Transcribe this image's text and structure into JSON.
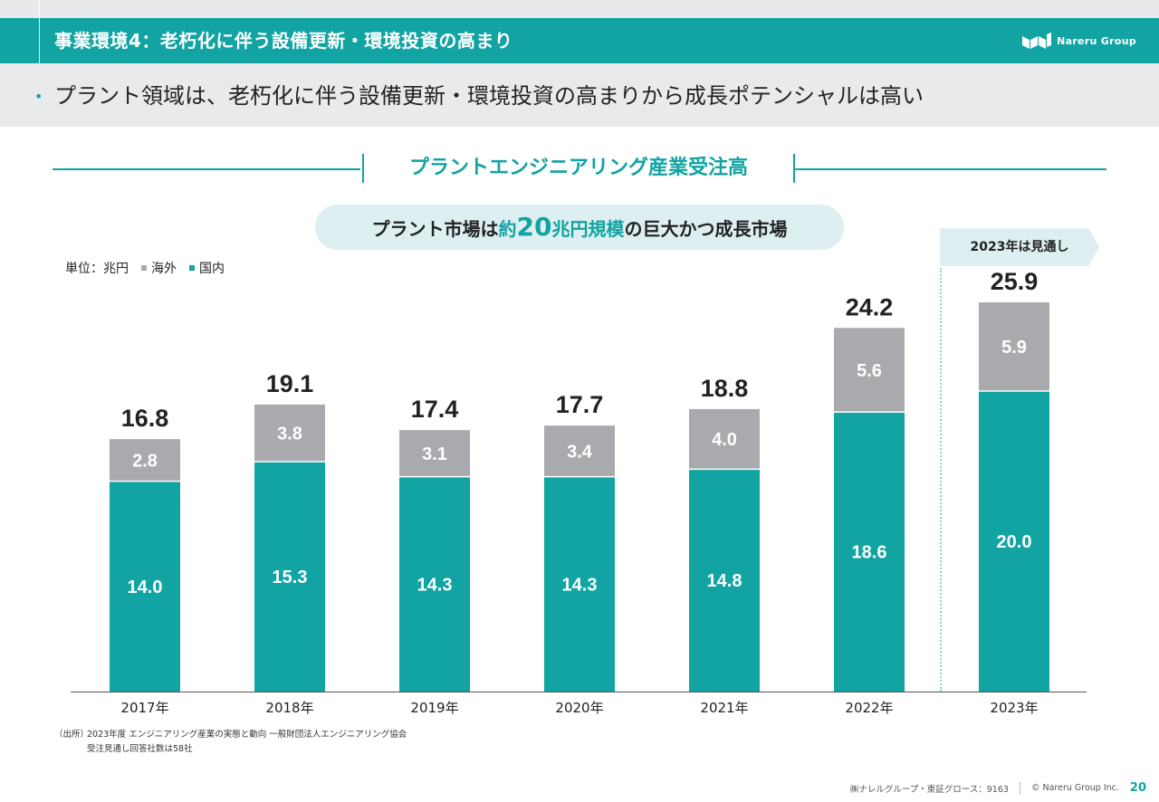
{
  "header": {
    "title": "事業環境4：老朽化に伴う設備更新・環境投資の高まり",
    "logo_text": "Nareru Group"
  },
  "subheader": {
    "bullet": "•",
    "text": "プラント領域は、老朽化に伴う設備更新・環境投資の高まりから成長ポテンシャルは高い"
  },
  "section_title": "プラントエンジニアリング産業受注高",
  "callout": {
    "pre": "プラント市場は",
    "accent_a": "約",
    "accent_big": "20",
    "accent_b": "兆円規模",
    "post": "の巨大かつ成長市場"
  },
  "forecast_label": "2023年は見通し",
  "legend": {
    "unit": "単位：兆円",
    "overseas": "海外",
    "domestic": "国内"
  },
  "colors": {
    "accent": "#12a3a3",
    "overseas": "#a9aaae",
    "domestic": "#12a3a3",
    "light": "#ddeff0"
  },
  "chart_data": {
    "type": "bar",
    "stacked": true,
    "categories": [
      "2017年",
      "2018年",
      "2019年",
      "2020年",
      "2021年",
      "2022年",
      "2023年"
    ],
    "series": [
      {
        "name": "国内",
        "values": [
          14.0,
          15.3,
          14.3,
          14.3,
          14.8,
          18.6,
          20.0
        ]
      },
      {
        "name": "海外",
        "values": [
          2.8,
          3.8,
          3.1,
          3.4,
          4.0,
          5.6,
          5.9
        ]
      }
    ],
    "totals": [
      16.8,
      19.1,
      17.4,
      17.7,
      18.8,
      24.2,
      25.9
    ],
    "ylim": [
      0,
      26
    ]
  },
  "source": {
    "label": "（出所）",
    "line1": "2023年度 エンジニアリング産業の実態と動向 一般財団法人エンジニアリング協会",
    "line2": "受注見通し回答社数は58社"
  },
  "footer": {
    "company": "㈱ナレルグループ・東証グロース：9163",
    "copyright": "© Nareru Group Inc.",
    "page": "20"
  }
}
